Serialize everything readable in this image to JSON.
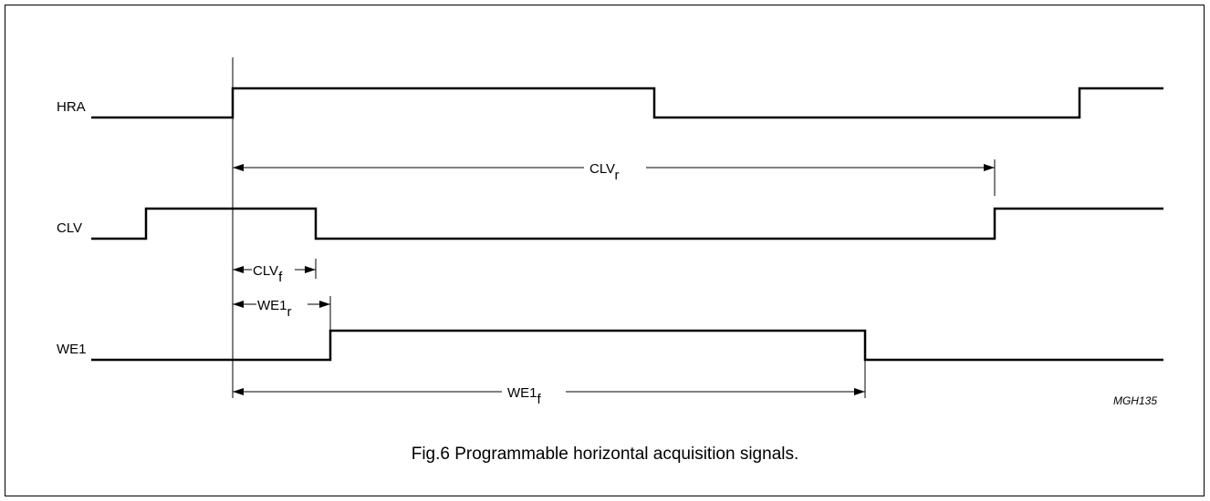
{
  "signals": [
    "HRA",
    "CLV",
    "WE1"
  ],
  "dimensions": [
    {
      "base": "CLV",
      "sub": "r"
    },
    {
      "base": "CLV",
      "sub": "f"
    },
    {
      "base": "WE1",
      "sub": "r"
    },
    {
      "base": "WE1",
      "sub": "f"
    }
  ],
  "code": "MGH135",
  "caption": "Fig.6  Programmable horizontal acquisition signals."
}
